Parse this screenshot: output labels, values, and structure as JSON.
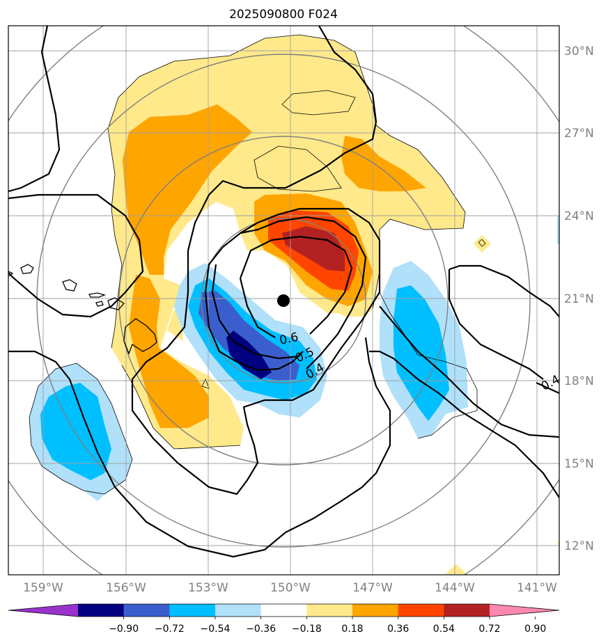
{
  "title": "2025090800 F024",
  "map": {
    "lon_labels": [
      "159°W",
      "156°W",
      "153°W",
      "150°W",
      "147°W",
      "144°W",
      "141°W"
    ],
    "lat_labels": [
      "30°N",
      "27°N",
      "24°N",
      "21°N",
      "18°N",
      "15°N",
      "12°N"
    ],
    "contour_labels": [
      "0.6",
      "0.5",
      "0.4",
      "0.4"
    ],
    "center_marker": "storm-center"
  },
  "colorbar": {
    "tick_labels": [
      "−0.90",
      "−0.72",
      "−0.54",
      "−0.36",
      "−0.18",
      "0.18",
      "0.36",
      "0.54",
      "0.72",
      "0.90"
    ],
    "colors": [
      "#9933cc",
      "#000080",
      "#3a5fcd",
      "#00bfff",
      "#b0e0fa",
      "#ffffff",
      "#ffe98a",
      "#ffa500",
      "#ff4500",
      "#b22222",
      "#ff88b0"
    ]
  }
}
